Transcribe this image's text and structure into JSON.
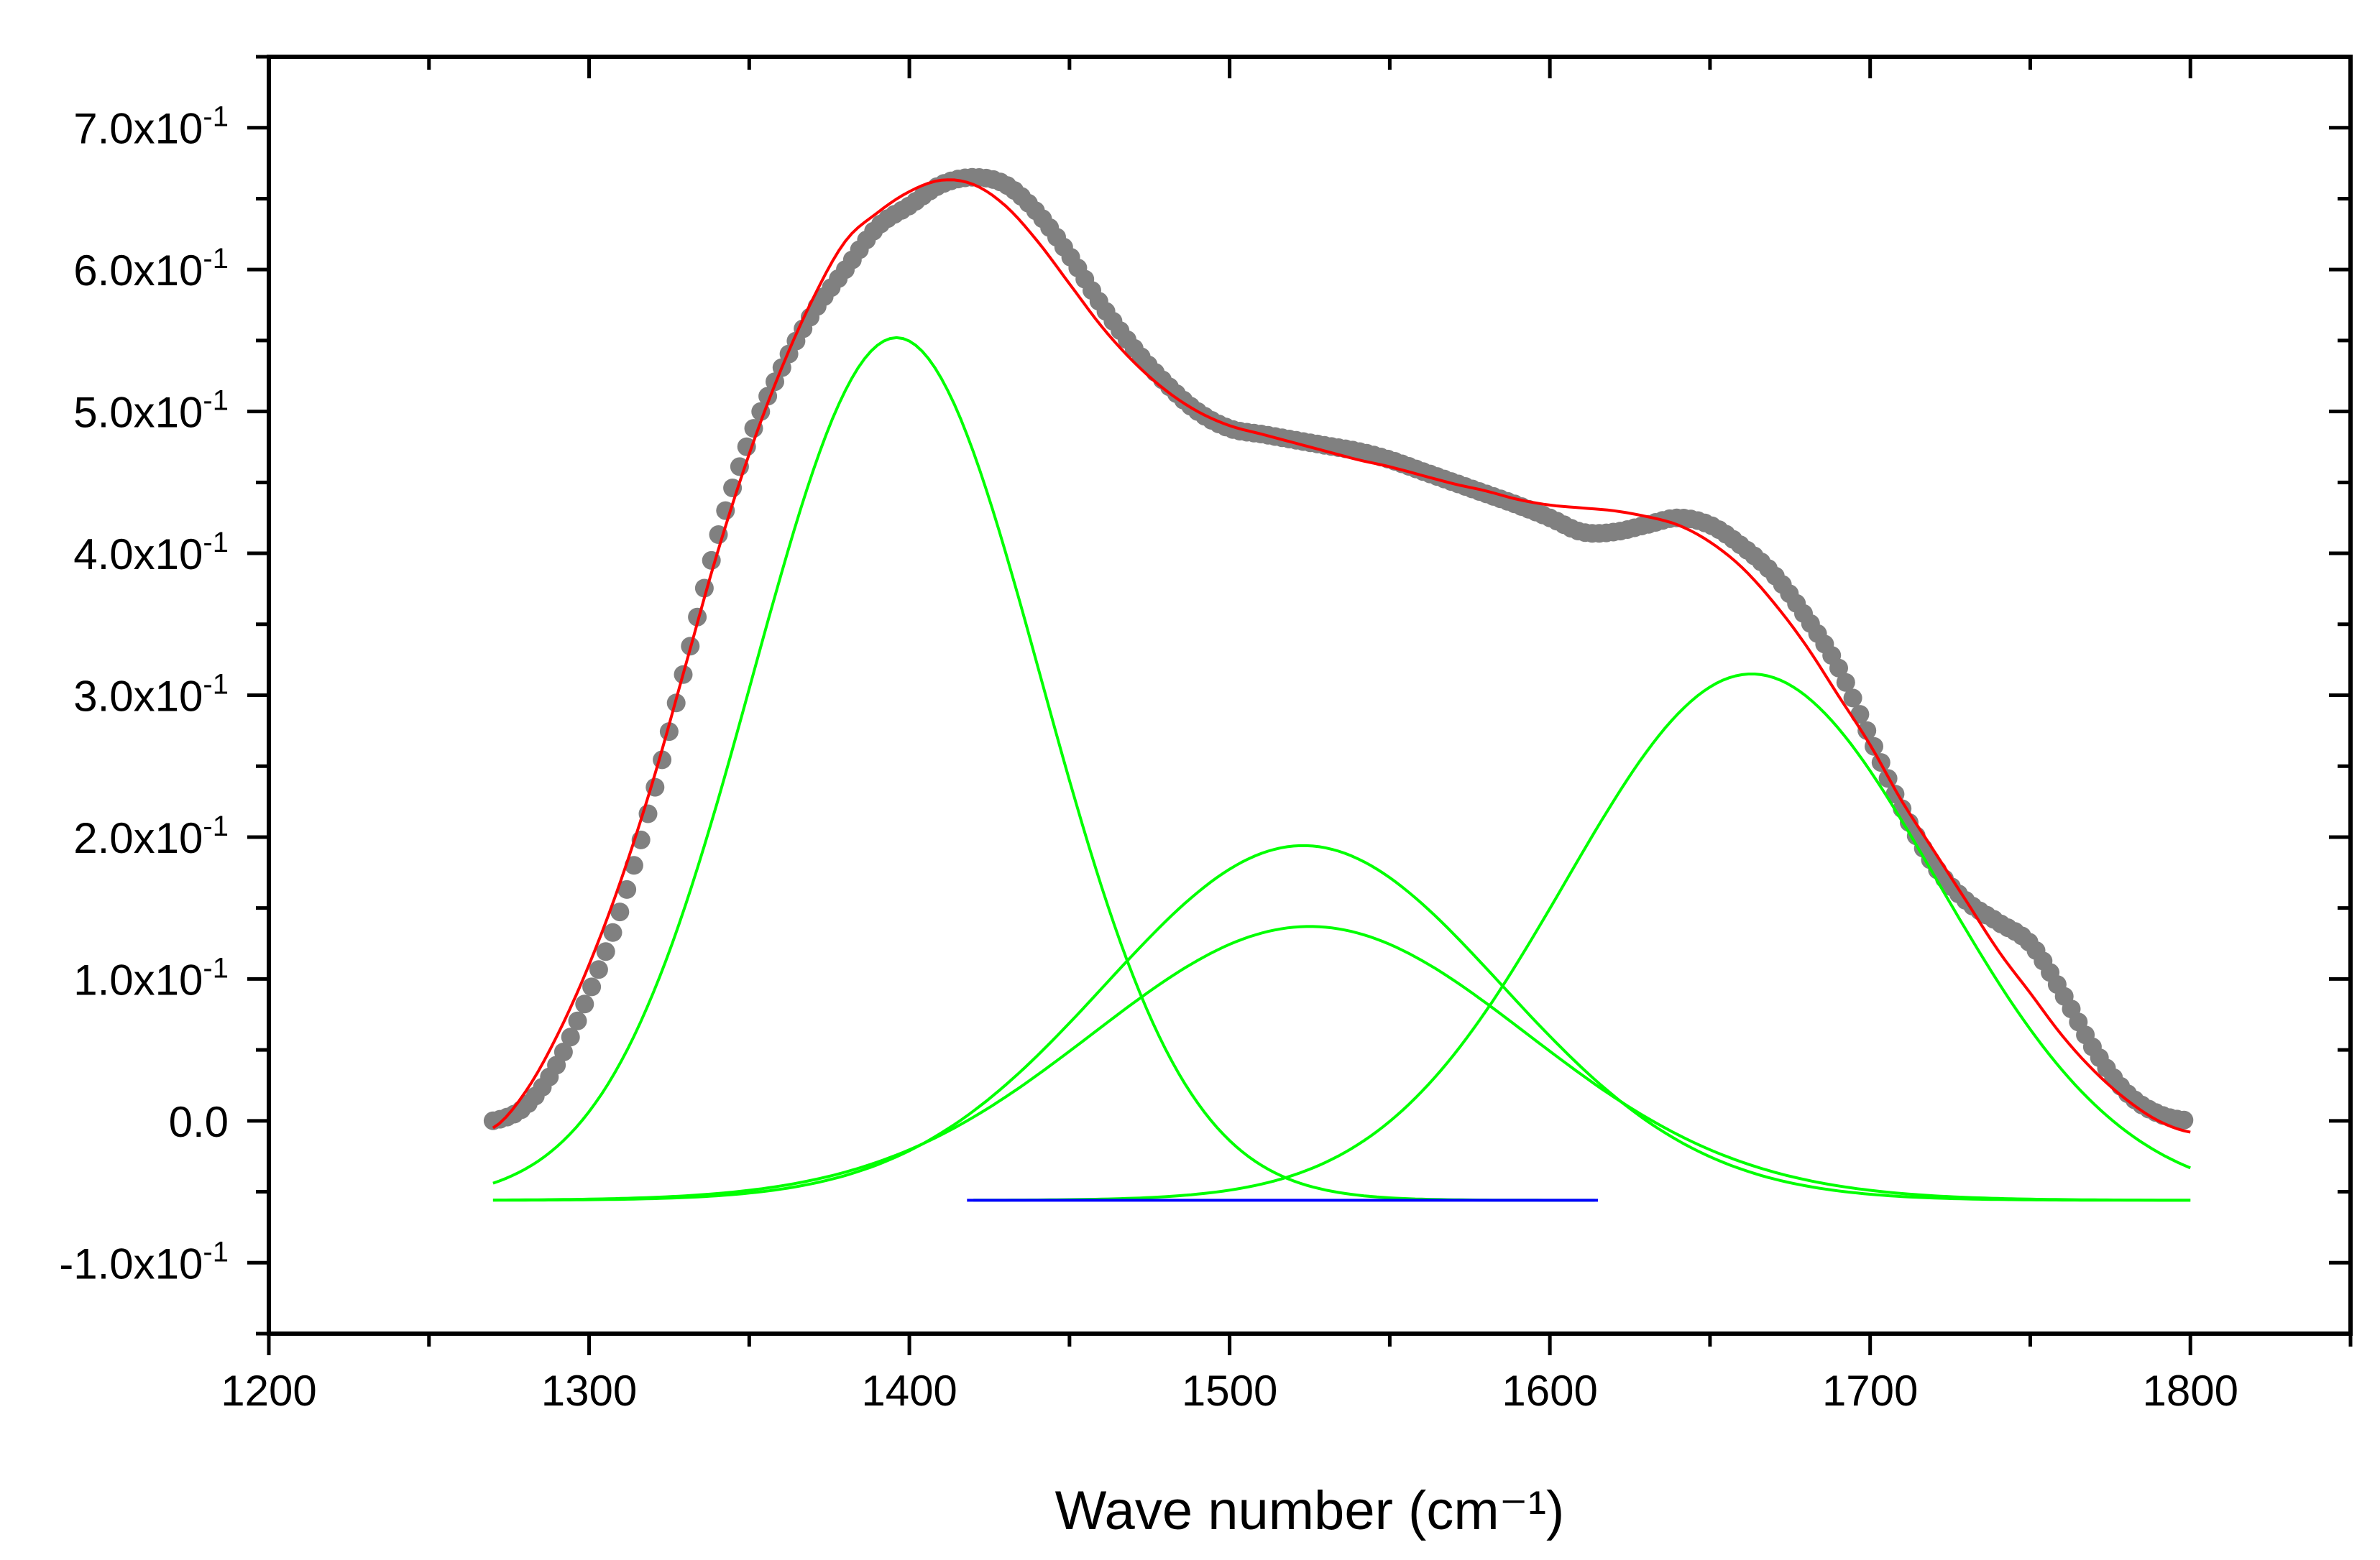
{
  "chart_data": {
    "type": "line",
    "title": "",
    "xlabel": "Wave number (cm⁻¹)",
    "ylabel": "",
    "xlim": [
      1200,
      1850
    ],
    "ylim": [
      -0.15,
      0.75
    ],
    "grid": false,
    "legend": "none",
    "x_ticks": [
      {
        "value": 1200,
        "label": "1200"
      },
      {
        "value": 1300,
        "label": "1300"
      },
      {
        "value": 1400,
        "label": "1400"
      },
      {
        "value": 1500,
        "label": "1500"
      },
      {
        "value": 1600,
        "label": "1600"
      },
      {
        "value": 1700,
        "label": "1700"
      },
      {
        "value": 1800,
        "label": "1800"
      }
    ],
    "y_ticks": [
      {
        "value": -0.1,
        "label": "-1.0x10",
        "exp": "-1"
      },
      {
        "value": 0.0,
        "label": "0.0",
        "exp": ""
      },
      {
        "value": 0.1,
        "label": "1.0x10",
        "exp": "-1"
      },
      {
        "value": 0.2,
        "label": "2.0x10",
        "exp": "-1"
      },
      {
        "value": 0.3,
        "label": "3.0x10",
        "exp": "-1"
      },
      {
        "value": 0.4,
        "label": "4.0x10",
        "exp": "-1"
      },
      {
        "value": 0.5,
        "label": "5.0x10",
        "exp": "-1"
      },
      {
        "value": 0.6,
        "label": "6.0x10",
        "exp": "-1"
      },
      {
        "value": 0.7,
        "label": "7.0x10",
        "exp": "-1"
      }
    ],
    "series": [
      {
        "name": "measured spectrum",
        "style": "points",
        "color": "#808080",
        "x": [
          1270,
          1280,
          1290,
          1300,
          1310,
          1320,
          1330,
          1340,
          1350,
          1360,
          1370,
          1380,
          1390,
          1400,
          1410,
          1420,
          1430,
          1440,
          1450,
          1460,
          1470,
          1480,
          1490,
          1500,
          1510,
          1520,
          1530,
          1540,
          1550,
          1560,
          1570,
          1580,
          1590,
          1600,
          1610,
          1620,
          1630,
          1640,
          1650,
          1660,
          1670,
          1680,
          1690,
          1700,
          1710,
          1720,
          1730,
          1740,
          1750,
          1760,
          1770,
          1780,
          1790,
          1800
        ],
        "y": [
          0.0,
          0.01,
          0.04,
          0.09,
          0.15,
          0.23,
          0.32,
          0.41,
          0.48,
          0.53,
          0.57,
          0.6,
          0.63,
          0.645,
          0.66,
          0.665,
          0.66,
          0.64,
          0.61,
          0.575,
          0.545,
          0.52,
          0.5,
          0.488,
          0.484,
          0.48,
          0.476,
          0.472,
          0.466,
          0.458,
          0.45,
          0.442,
          0.434,
          0.425,
          0.415,
          0.415,
          0.42,
          0.425,
          0.42,
          0.405,
          0.385,
          0.355,
          0.32,
          0.27,
          0.22,
          0.18,
          0.155,
          0.14,
          0.125,
          0.09,
          0.05,
          0.02,
          0.005,
          0.0
        ]
      },
      {
        "name": "cumulative fit",
        "style": "line",
        "color": "#ff0000",
        "x": [
          1270,
          1280,
          1290,
          1300,
          1310,
          1320,
          1330,
          1340,
          1350,
          1360,
          1370,
          1380,
          1390,
          1400,
          1410,
          1420,
          1430,
          1440,
          1450,
          1460,
          1470,
          1480,
          1490,
          1500,
          1510,
          1520,
          1530,
          1540,
          1550,
          1560,
          1570,
          1580,
          1590,
          1600,
          1610,
          1620,
          1630,
          1640,
          1650,
          1660,
          1670,
          1680,
          1690,
          1700,
          1710,
          1720,
          1730,
          1740,
          1750,
          1760,
          1770,
          1780,
          1790,
          1800
        ],
        "y": [
          -0.005,
          0.02,
          0.06,
          0.11,
          0.17,
          0.24,
          0.32,
          0.4,
          0.47,
          0.53,
          0.58,
          0.62,
          0.64,
          0.655,
          0.663,
          0.66,
          0.645,
          0.62,
          0.59,
          0.56,
          0.535,
          0.515,
          0.5,
          0.49,
          0.484,
          0.478,
          0.472,
          0.466,
          0.461,
          0.455,
          0.449,
          0.444,
          0.438,
          0.434,
          0.432,
          0.43,
          0.426,
          0.42,
          0.408,
          0.39,
          0.365,
          0.335,
          0.3,
          0.265,
          0.225,
          0.19,
          0.155,
          0.12,
          0.09,
          0.06,
          0.035,
          0.015,
          -0.0,
          -0.008
        ]
      },
      {
        "name": "component peak 1",
        "style": "line",
        "color": "#00ff00",
        "center": 1396,
        "amplitude": 0.608,
        "sigma": 45,
        "offset": -0.056,
        "x_range": [
          1270,
          1615
        ]
      },
      {
        "name": "component peak 2",
        "style": "line",
        "color": "#00ff00",
        "center": 1523,
        "amplitude": 0.25,
        "sigma": 62,
        "offset": -0.056,
        "x_range": [
          1270,
          1800
        ]
      },
      {
        "name": "component peak 3",
        "style": "line",
        "color": "#00ff00",
        "center": 1525,
        "amplitude": 0.193,
        "sigma": 68,
        "offset": -0.056,
        "x_range": [
          1270,
          1800
        ]
      },
      {
        "name": "component peak 4",
        "style": "line",
        "color": "#00ff00",
        "center": 1663,
        "amplitude": 0.371,
        "sigma": 58,
        "offset": -0.056,
        "x_range": [
          1420,
          1800
        ]
      },
      {
        "name": "baseline",
        "style": "line",
        "color": "#0000ff",
        "x": [
          1418,
          1615
        ],
        "y": [
          -0.056,
          -0.056
        ]
      }
    ]
  }
}
